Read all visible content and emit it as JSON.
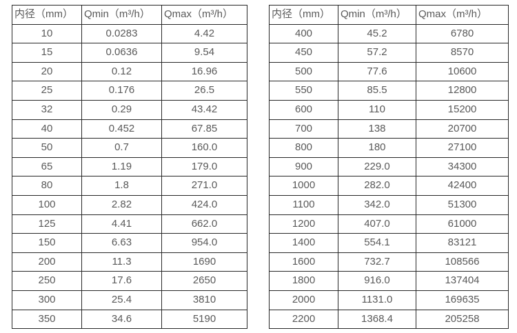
{
  "page": {
    "background_color": "#ffffff",
    "text_color": "#595959",
    "border_color": "#262626"
  },
  "tables": [
    {
      "name": "flow-table-small-diameters",
      "headers": [
        "内径（mm）",
        "Qmin（m³/h）",
        "Qmax（m³/h）"
      ],
      "rows": [
        [
          "10",
          "0.0283",
          "4.42"
        ],
        [
          "15",
          "0.0636",
          "9.54"
        ],
        [
          "20",
          "0.12",
          "16.96"
        ],
        [
          "25",
          "0.176",
          "26.5"
        ],
        [
          "32",
          "0.29",
          "43.42"
        ],
        [
          "40",
          "0.452",
          "67.85"
        ],
        [
          "50",
          "0.7",
          "160.0"
        ],
        [
          "65",
          "1.19",
          "179.0"
        ],
        [
          "80",
          "1.8",
          "271.0"
        ],
        [
          "100",
          "2.82",
          "424.0"
        ],
        [
          "125",
          "4.41",
          "662.0"
        ],
        [
          "150",
          "6.63",
          "954.0"
        ],
        [
          "200",
          "11.3",
          "1690"
        ],
        [
          "250",
          "17.6",
          "2650"
        ],
        [
          "300",
          "25.4",
          "3810"
        ],
        [
          "350",
          "34.6",
          "5190"
        ]
      ]
    },
    {
      "name": "flow-table-large-diameters",
      "headers": [
        "内径（mm）",
        "Qmin（m³/h）",
        "Qmax（m³/h）"
      ],
      "rows": [
        [
          "400",
          "45.2",
          "6780"
        ],
        [
          "450",
          "57.2",
          "8570"
        ],
        [
          "500",
          "77.6",
          "10600"
        ],
        [
          "550",
          "85.5",
          "12800"
        ],
        [
          "600",
          "110",
          "15200"
        ],
        [
          "700",
          "138",
          "20700"
        ],
        [
          "800",
          "180",
          "27100"
        ],
        [
          "900",
          "229.0",
          "34300"
        ],
        [
          "1000",
          "282.0",
          "42400"
        ],
        [
          "1100",
          "342.0",
          "51300"
        ],
        [
          "1200",
          "407.0",
          "61000"
        ],
        [
          "1400",
          "554.1",
          "83121"
        ],
        [
          "1600",
          "732.7",
          "108566"
        ],
        [
          "1800",
          "916.0",
          "137404"
        ],
        [
          "2000",
          "1131.0",
          "169635"
        ],
        [
          "2200",
          "1368.4",
          "205258"
        ]
      ]
    }
  ]
}
